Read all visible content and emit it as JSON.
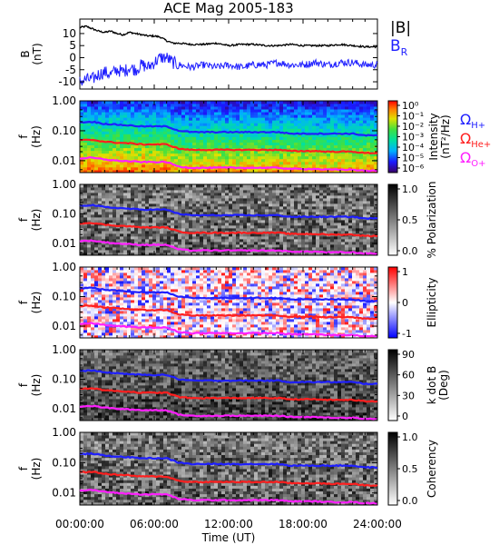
{
  "title": "ACE Mag 2005-183",
  "time_axis": {
    "label": "Time (UT)",
    "ticks": [
      "00:00:00",
      "06:00:00",
      "12:00:00",
      "18:00:00",
      "24:00:00"
    ],
    "range_hours": [
      0,
      24
    ]
  },
  "legend": {
    "mag": [
      {
        "text": "|B|",
        "color": "#000000"
      },
      {
        "text": "B",
        "sub": "R",
        "color": "#1f1fff"
      }
    ],
    "gyro": [
      {
        "text": "Ω",
        "sub": "H+",
        "color": "#1f1fff"
      },
      {
        "text": "Ω",
        "sub": "He+",
        "color": "#ff1f1f"
      },
      {
        "text": "Ω",
        "sub": "O+",
        "color": "#ff1fff"
      }
    ]
  },
  "chart_data": [
    {
      "type": "line",
      "panel": "magnetic-field",
      "ylabel": "B",
      "yunit": "(nT)",
      "ylim": [
        -13,
        16
      ],
      "yticks": [
        "10",
        "5",
        "0",
        "-5",
        "-10"
      ],
      "x_hours": [
        0,
        0.5,
        1,
        1.5,
        2,
        2.5,
        3,
        3.5,
        4,
        4.5,
        5,
        5.5,
        6,
        6.5,
        7,
        7.5,
        8,
        9,
        10,
        11,
        12,
        13,
        14,
        15,
        16,
        17,
        18,
        19,
        20,
        21,
        22,
        23,
        24
      ],
      "series": [
        {
          "name": "|B|",
          "color": "#000000",
          "values": [
            12.5,
            13.0,
            12.0,
            11.0,
            10.5,
            11.0,
            10.0,
            9.5,
            10.5,
            10.0,
            9.5,
            9.0,
            9.0,
            8.5,
            7.0,
            6.0,
            6.0,
            5.5,
            5.5,
            6.0,
            5.0,
            5.5,
            5.5,
            5.0,
            5.0,
            5.5,
            5.0,
            5.0,
            5.0,
            5.5,
            5.0,
            4.5,
            4.5
          ]
        },
        {
          "name": "B_R",
          "color": "#1f1fff",
          "values": [
            -10.0,
            -9.0,
            -9.0,
            -7.0,
            -6.0,
            -7.0,
            -5.0,
            -6.0,
            -4.0,
            -5.0,
            -3.0,
            -4.0,
            -2.0,
            0.0,
            0.0,
            -2.0,
            -3.0,
            -4.0,
            -3.0,
            -4.0,
            -3.0,
            -4.0,
            -3.0,
            -3.0,
            -2.0,
            -3.0,
            -3.0,
            -2.0,
            -3.0,
            -2.0,
            -2.0,
            -3.0,
            -3.0
          ]
        }
      ]
    },
    {
      "type": "heatmap",
      "panel": "power-spectrum",
      "ylabel": "f",
      "yunit": "(Hz)",
      "scale": "log",
      "ylim": [
        0.004,
        1.0
      ],
      "yticks": [
        "1.00",
        "0.10",
        "0.01"
      ],
      "colorbar": {
        "label": "Intensity",
        "unit": "(nT²/Hz)",
        "ticks": [
          "10⁰",
          "10⁻¹",
          "10⁻²",
          "10⁻³",
          "10⁻⁴",
          "10⁻⁵",
          "10⁻⁶"
        ],
        "range": [
          1e-06,
          1
        ],
        "colormap": "rainbow"
      }
    },
    {
      "type": "heatmap",
      "panel": "polarization",
      "ylabel": "f",
      "yunit": "(Hz)",
      "scale": "log",
      "ylim": [
        0.004,
        1.0
      ],
      "yticks": [
        "1.00",
        "0.10",
        "0.01"
      ],
      "colorbar": {
        "label": "% Polarization",
        "ticks": [
          "1.0",
          "0.5",
          "0.0"
        ],
        "range": [
          0,
          1
        ],
        "colormap": "gray"
      }
    },
    {
      "type": "heatmap",
      "panel": "ellipticity",
      "ylabel": "f",
      "yunit": "(Hz)",
      "scale": "log",
      "ylim": [
        0.004,
        1.0
      ],
      "yticks": [
        "1.00",
        "0.10",
        "0.01"
      ],
      "colorbar": {
        "label": "Ellipticity",
        "ticks": [
          "1",
          "0",
          "-1"
        ],
        "range": [
          -1,
          1
        ],
        "colormap": "blue-white-red"
      }
    },
    {
      "type": "heatmap",
      "panel": "wave-normal-angle",
      "ylabel": "f",
      "yunit": "(Hz)",
      "scale": "log",
      "ylim": [
        0.004,
        1.0
      ],
      "yticks": [
        "1.00",
        "0.10",
        "0.01"
      ],
      "colorbar": {
        "label": "k dot B",
        "unit": "(Deg)",
        "ticks": [
          "90",
          "60",
          "30",
          "0"
        ],
        "range": [
          0,
          90
        ],
        "colormap": "gray"
      }
    },
    {
      "type": "heatmap",
      "panel": "coherency",
      "ylabel": "f",
      "yunit": "(Hz)",
      "scale": "log",
      "ylim": [
        0.004,
        1.0
      ],
      "yticks": [
        "1.00",
        "0.10",
        "0.01"
      ],
      "colorbar": {
        "label": "Coherency",
        "ticks": [
          "1.0",
          "0.5",
          "0.0"
        ],
        "range": [
          0,
          1
        ],
        "colormap": "gray"
      }
    }
  ],
  "gyrofrequency_lines": {
    "x_hours": [
      0,
      1,
      2,
      3,
      4,
      5,
      6,
      7,
      8,
      9,
      10,
      11,
      12,
      13,
      14,
      15,
      16,
      17,
      18,
      19,
      20,
      21,
      22,
      23,
      24
    ],
    "series": [
      {
        "name": "Ω_H+",
        "color": "#1f1fff",
        "values": [
          0.19,
          0.2,
          0.17,
          0.16,
          0.15,
          0.14,
          0.14,
          0.14,
          0.1,
          0.09,
          0.09,
          0.09,
          0.09,
          0.09,
          0.09,
          0.09,
          0.09,
          0.08,
          0.08,
          0.08,
          0.08,
          0.08,
          0.08,
          0.07,
          0.07
        ]
      },
      {
        "name": "Ω_He+",
        "color": "#ff1f1f",
        "values": [
          0.048,
          0.05,
          0.043,
          0.04,
          0.038,
          0.035,
          0.035,
          0.035,
          0.025,
          0.023,
          0.023,
          0.023,
          0.023,
          0.023,
          0.023,
          0.023,
          0.023,
          0.021,
          0.021,
          0.021,
          0.02,
          0.02,
          0.02,
          0.018,
          0.018
        ]
      },
      {
        "name": "Ω_O+",
        "color": "#ff1fff",
        "values": [
          0.012,
          0.0125,
          0.011,
          0.01,
          0.0095,
          0.009,
          0.009,
          0.009,
          0.0063,
          0.0058,
          0.0058,
          0.0058,
          0.0058,
          0.0058,
          0.0058,
          0.0058,
          0.0058,
          0.0053,
          0.0053,
          0.0053,
          0.005,
          0.005,
          0.005,
          0.0046,
          0.0046
        ]
      }
    ]
  }
}
